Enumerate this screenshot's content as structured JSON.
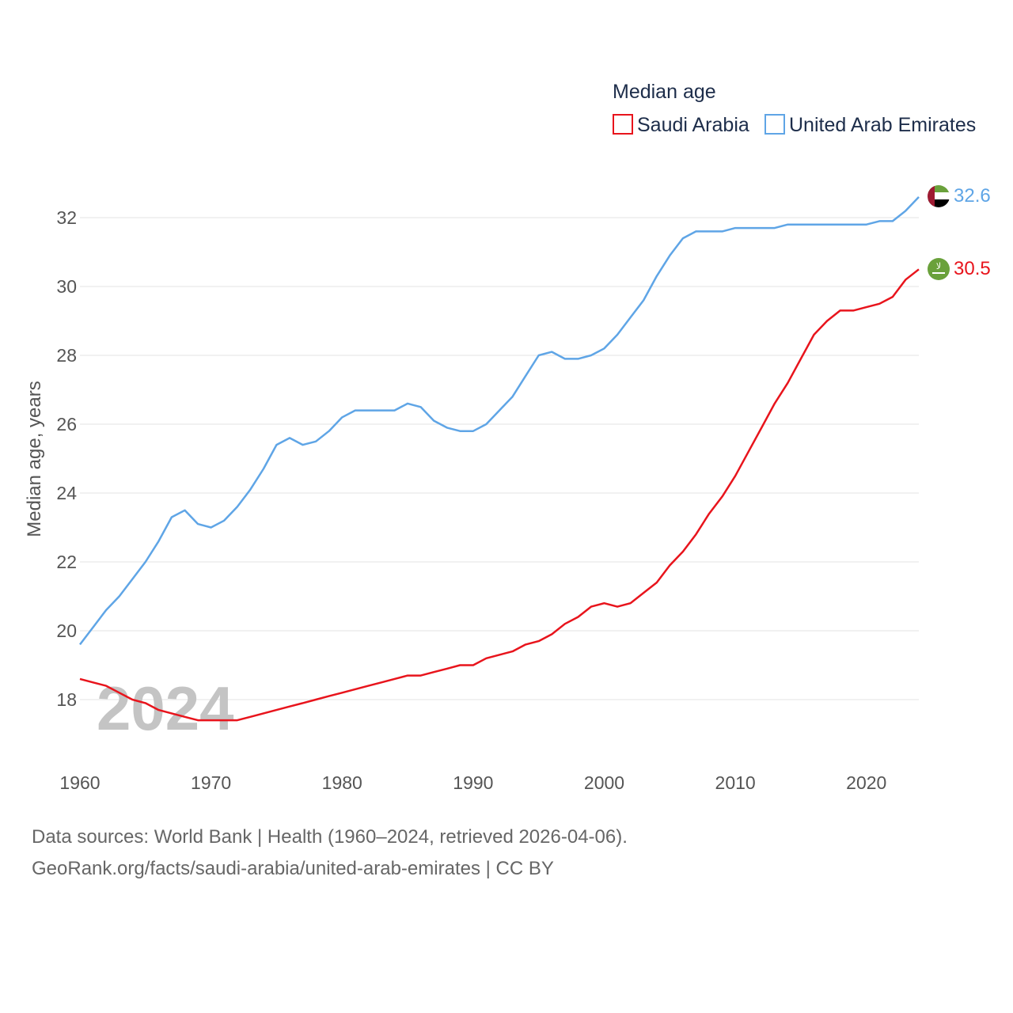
{
  "chart_data": {
    "type": "line",
    "legend_title": "Median age",
    "ylabel": "Median age, years",
    "xlabel": "",
    "year_watermark": "2024",
    "xlim": [
      1960,
      2024
    ],
    "ylim": [
      17,
      33
    ],
    "x_ticks": [
      1960,
      1970,
      1980,
      1990,
      2000,
      2010,
      2020
    ],
    "y_ticks": [
      18,
      20,
      22,
      24,
      26,
      28,
      30,
      32
    ],
    "grid": true,
    "legend_position": "top-right",
    "x": [
      1960,
      1961,
      1962,
      1963,
      1964,
      1965,
      1966,
      1967,
      1968,
      1969,
      1970,
      1971,
      1972,
      1973,
      1974,
      1975,
      1976,
      1977,
      1978,
      1979,
      1980,
      1981,
      1982,
      1983,
      1984,
      1985,
      1986,
      1987,
      1988,
      1989,
      1990,
      1991,
      1992,
      1993,
      1994,
      1995,
      1996,
      1997,
      1998,
      1999,
      2000,
      2001,
      2002,
      2003,
      2004,
      2005,
      2006,
      2007,
      2008,
      2009,
      2010,
      2011,
      2012,
      2013,
      2014,
      2015,
      2016,
      2017,
      2018,
      2019,
      2020,
      2021,
      2022,
      2023,
      2024
    ],
    "series": [
      {
        "name": "Saudi Arabia",
        "color": "#e8141c",
        "end_label": "30.5",
        "values": [
          18.6,
          18.5,
          18.4,
          18.2,
          18.0,
          17.9,
          17.7,
          17.6,
          17.5,
          17.4,
          17.4,
          17.4,
          17.4,
          17.5,
          17.6,
          17.7,
          17.8,
          17.9,
          18.0,
          18.1,
          18.2,
          18.3,
          18.4,
          18.5,
          18.6,
          18.7,
          18.7,
          18.8,
          18.9,
          19.0,
          19.0,
          19.2,
          19.3,
          19.4,
          19.6,
          19.7,
          19.9,
          20.2,
          20.4,
          20.7,
          20.8,
          20.7,
          20.8,
          21.1,
          21.4,
          21.9,
          22.3,
          22.8,
          23.4,
          23.9,
          24.5,
          25.2,
          25.9,
          26.6,
          27.2,
          27.9,
          28.6,
          29.0,
          29.3,
          29.3,
          29.4,
          29.5,
          29.7,
          30.2,
          30.5
        ]
      },
      {
        "name": "United Arab Emirates",
        "color": "#5fa5e6",
        "end_label": "32.6",
        "values": [
          19.6,
          20.1,
          20.6,
          21.0,
          21.5,
          22.0,
          22.6,
          23.3,
          23.5,
          23.1,
          23.0,
          23.2,
          23.6,
          24.1,
          24.7,
          25.4,
          25.6,
          25.4,
          25.5,
          25.8,
          26.2,
          26.4,
          26.4,
          26.4,
          26.4,
          26.6,
          26.5,
          26.1,
          25.9,
          25.8,
          25.8,
          26.0,
          26.4,
          26.8,
          27.4,
          28.0,
          28.1,
          27.9,
          27.9,
          28.0,
          28.2,
          28.6,
          29.1,
          29.6,
          30.3,
          30.9,
          31.4,
          31.6,
          31.6,
          31.6,
          31.7,
          31.7,
          31.7,
          31.7,
          31.8,
          31.8,
          31.8,
          31.8,
          31.8,
          31.8,
          31.8,
          31.9,
          31.9,
          32.2,
          32.6
        ]
      }
    ]
  },
  "flags": {
    "uae": {
      "icon": "uae-flag-icon",
      "colors": [
        "#6aa13b",
        "#ffffff",
        "#000000",
        "#9e1b32"
      ]
    },
    "saudi": {
      "icon": "saudi-flag-icon",
      "text": "لا",
      "color": "#6aa13b"
    }
  },
  "source": {
    "line1": "Data sources: World Bank | Health (1960–2024, retrieved 2026-04-06).",
    "line2": "GeoRank.org/facts/saudi-arabia/united-arab-emirates | CC BY"
  }
}
